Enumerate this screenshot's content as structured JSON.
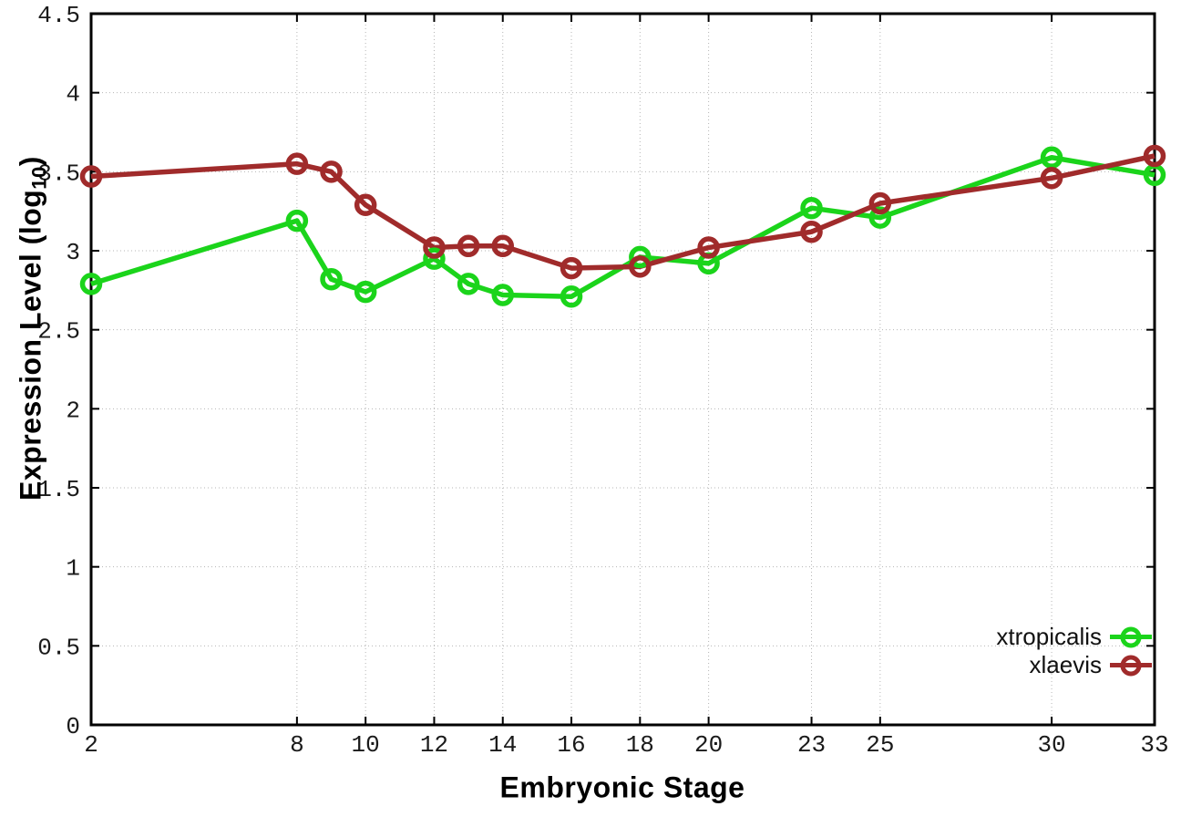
{
  "chart_data": {
    "type": "line",
    "title": "",
    "xlabel": "Embryonic Stage",
    "ylabel": "Expression Level (log10)",
    "ylabel_parts": {
      "main": "Expression Level (log",
      "sub": "10",
      "close": ")"
    },
    "x": [
      2,
      8,
      9,
      10,
      12,
      13,
      14,
      16,
      18,
      20,
      23,
      25,
      30,
      33
    ],
    "series": [
      {
        "name": "xtropicalis",
        "color": "#1bd41b",
        "values": [
          2.79,
          3.19,
          2.82,
          2.74,
          2.95,
          2.79,
          2.72,
          2.71,
          2.96,
          2.92,
          3.27,
          3.21,
          3.59,
          3.48
        ]
      },
      {
        "name": "xlaevis",
        "color": "#a02b2b",
        "values": [
          3.47,
          3.55,
          3.5,
          3.29,
          3.02,
          3.03,
          3.03,
          2.89,
          2.9,
          3.02,
          3.12,
          3.3,
          3.46,
          3.6
        ]
      }
    ],
    "xlim": [
      2,
      33
    ],
    "ylim": [
      0,
      4.5
    ],
    "xticks": [
      2,
      8,
      10,
      12,
      14,
      16,
      18,
      20,
      23,
      25,
      30,
      33
    ],
    "yticks": [
      "0",
      "0.5",
      "1",
      "1.5",
      "2",
      "2.5",
      "3",
      "3.5",
      "4",
      "4.5"
    ],
    "grid": true,
    "legend_position": "inside-bottom-right",
    "marker": "open-circle"
  },
  "colors": {
    "background": "#ffffff",
    "grid": "#b5b5b5",
    "axis": "#000000",
    "tick_text": "#1a1a1a",
    "title_text": "#000000"
  }
}
